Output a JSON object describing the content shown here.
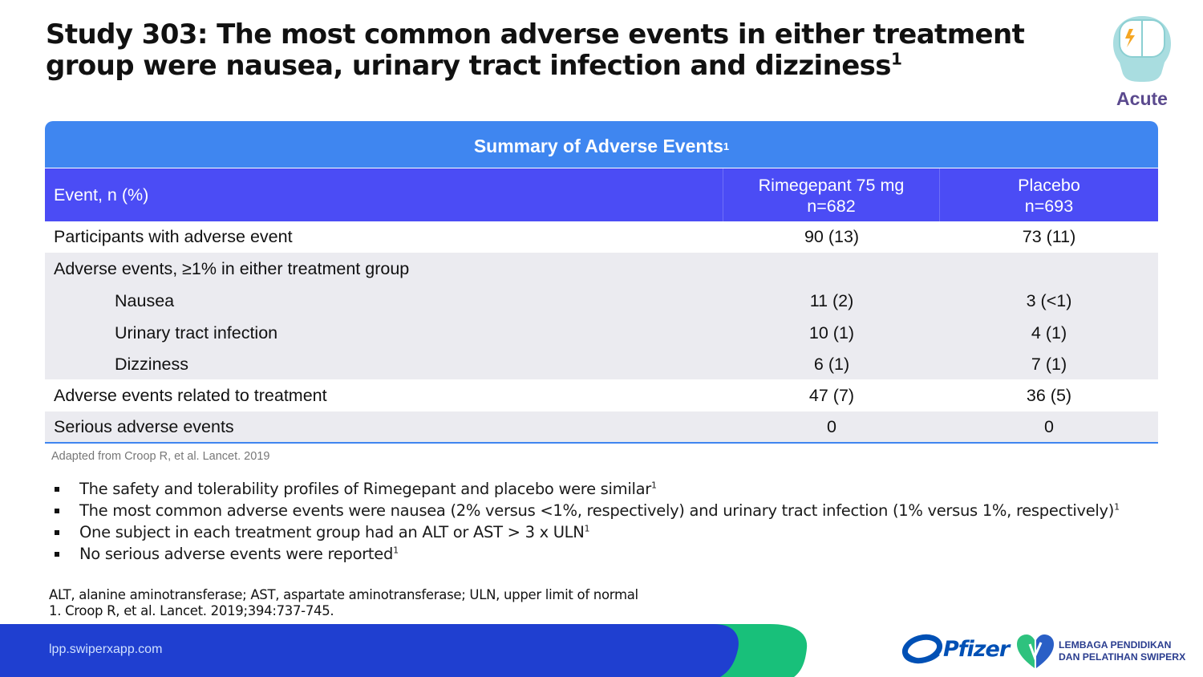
{
  "slide": {
    "title": "Study 303: The most common adverse events in either treatment group were nausea, urinary tract infection and dizziness",
    "title_sup": "1",
    "badge_label": "Acute"
  },
  "table": {
    "caption": "Summary of Adverse Events",
    "caption_sup": "1",
    "headers": {
      "event": "Event, n (%)",
      "drug_line1": "Rimegepant 75 mg",
      "drug_line2": "n=682",
      "placebo_line1": "Placebo",
      "placebo_line2": "n=693"
    },
    "rows": [
      {
        "label": "Participants with adverse event",
        "rimegepant": "90 (13)",
        "placebo": "73 (11)"
      },
      {
        "label": "Adverse events, ≥1% in either treatment group",
        "rimegepant": "",
        "placebo": ""
      },
      {
        "label": "Nausea",
        "rimegepant": "11 (2)",
        "placebo": "3 (<1)"
      },
      {
        "label": "Urinary tract infection",
        "rimegepant": "10 (1)",
        "placebo": "4 (1)"
      },
      {
        "label": "Dizziness",
        "rimegepant": "6 (1)",
        "placebo": "7 (1)"
      },
      {
        "label": "Adverse events related to treatment",
        "rimegepant": "47 (7)",
        "placebo": "36 (5)"
      },
      {
        "label": "Serious adverse events",
        "rimegepant": "0",
        "placebo": "0"
      }
    ],
    "source": "Adapted from Croop R, et al. Lancet. 2019"
  },
  "bullets": [
    {
      "text": "The safety and tolerability profiles of Rimegepant and placebo were similar",
      "sup": "1"
    },
    {
      "text": "The most common adverse events were nausea (2% versus <1%, respectively) and urinary tract infection (1% versus 1%, respectively)",
      "sup": "1"
    },
    {
      "text": "One subject in each treatment group had an ALT or AST > 3 x ULN",
      "sup": "1"
    },
    {
      "text": "No serious adverse events were reported",
      "sup": "1"
    }
  ],
  "footnotes": {
    "abbreviations": "ALT, alanine aminotransferase; AST, aspartate aminotransferase; ULN, upper limit of normal",
    "reference": "1. Croop R, et al. Lancet. 2019;394:737-745."
  },
  "footer": {
    "url": "lpp.swiperxapp.com",
    "pfizer_logo": "Pfizer",
    "lpp_line1": "LEMBAGA PENDIDIKAN",
    "lpp_line2": "DAN PELATIHAN SWIPERX"
  },
  "colors": {
    "table_header_blue": "#3f86f0",
    "column_header_indigo": "#4b4cf5",
    "row_grey": "#ebebf0",
    "footer_navy": "#1f3fd0",
    "footer_green": "#18c07a",
    "badge_purple": "#5b4a8e"
  }
}
